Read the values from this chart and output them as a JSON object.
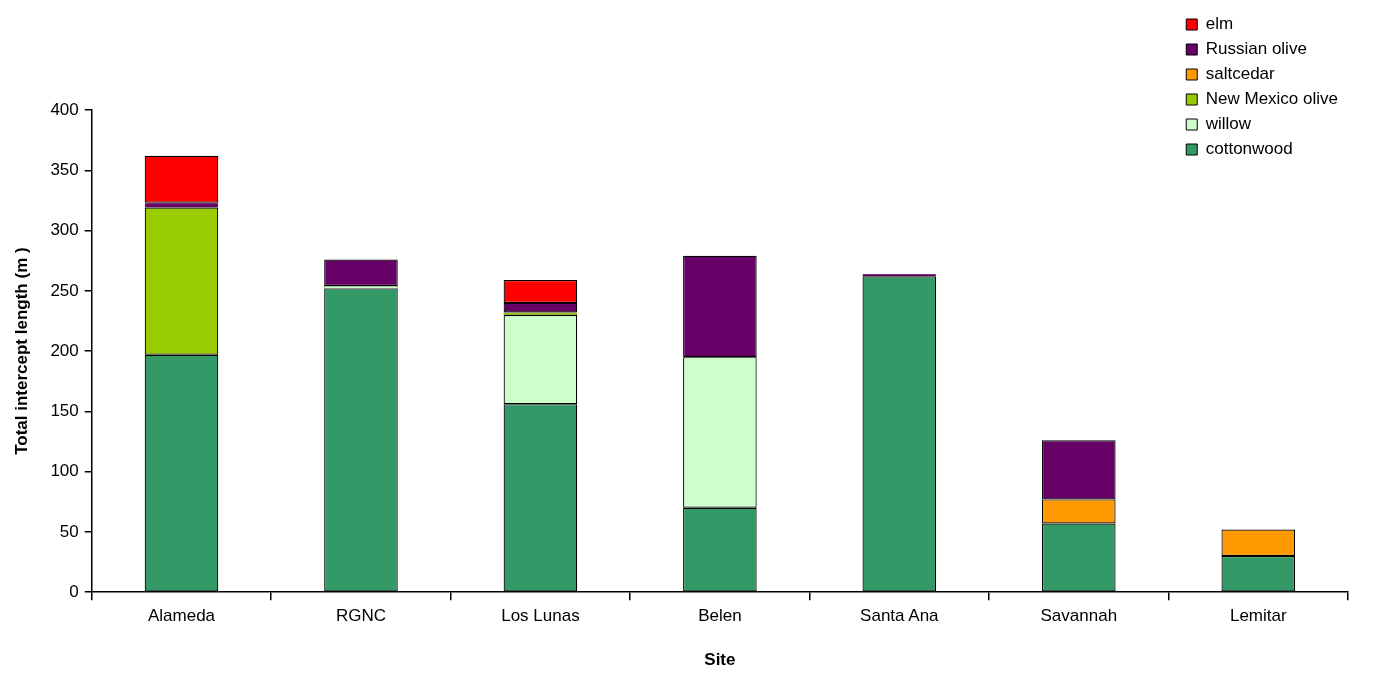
{
  "chart_data": {
    "type": "bar",
    "stacked": true,
    "xlabel": "Site",
    "ylabel": "Total intercept length (m )",
    "categories": [
      "Alameda",
      "RGNC",
      "Los Lunas",
      "Belen",
      "Santa Ana",
      "Savannah",
      "Lemitar"
    ],
    "series": [
      {
        "name": "cottonwood",
        "color": "#339966",
        "values": [
          197,
          252,
          156,
          70,
          262,
          57,
          30
        ]
      },
      {
        "name": "willow",
        "color": "#ccffcc",
        "values": [
          null,
          2,
          74,
          125,
          null,
          null,
          null
        ]
      },
      {
        "name": "New Mexico olive",
        "color": "#99cc00",
        "values": [
          122,
          null,
          2,
          null,
          null,
          null,
          null
        ]
      },
      {
        "name": "saltcedar",
        "color": "#ff9900",
        "values": [
          null,
          null,
          null,
          null,
          null,
          20,
          22
        ]
      },
      {
        "name": "Russian olive",
        "color": "#660066",
        "values": [
          4,
          22,
          8,
          84,
          2,
          49,
          null
        ]
      },
      {
        "name": "elm",
        "color": "#ff0000",
        "values": [
          39,
          null,
          19,
          null,
          null,
          null,
          null
        ]
      }
    ],
    "ylim": [
      0,
      400
    ],
    "yticks": [
      0,
      50,
      100,
      150,
      200,
      250,
      300,
      350,
      400
    ],
    "grid": false,
    "legend": "top right"
  }
}
